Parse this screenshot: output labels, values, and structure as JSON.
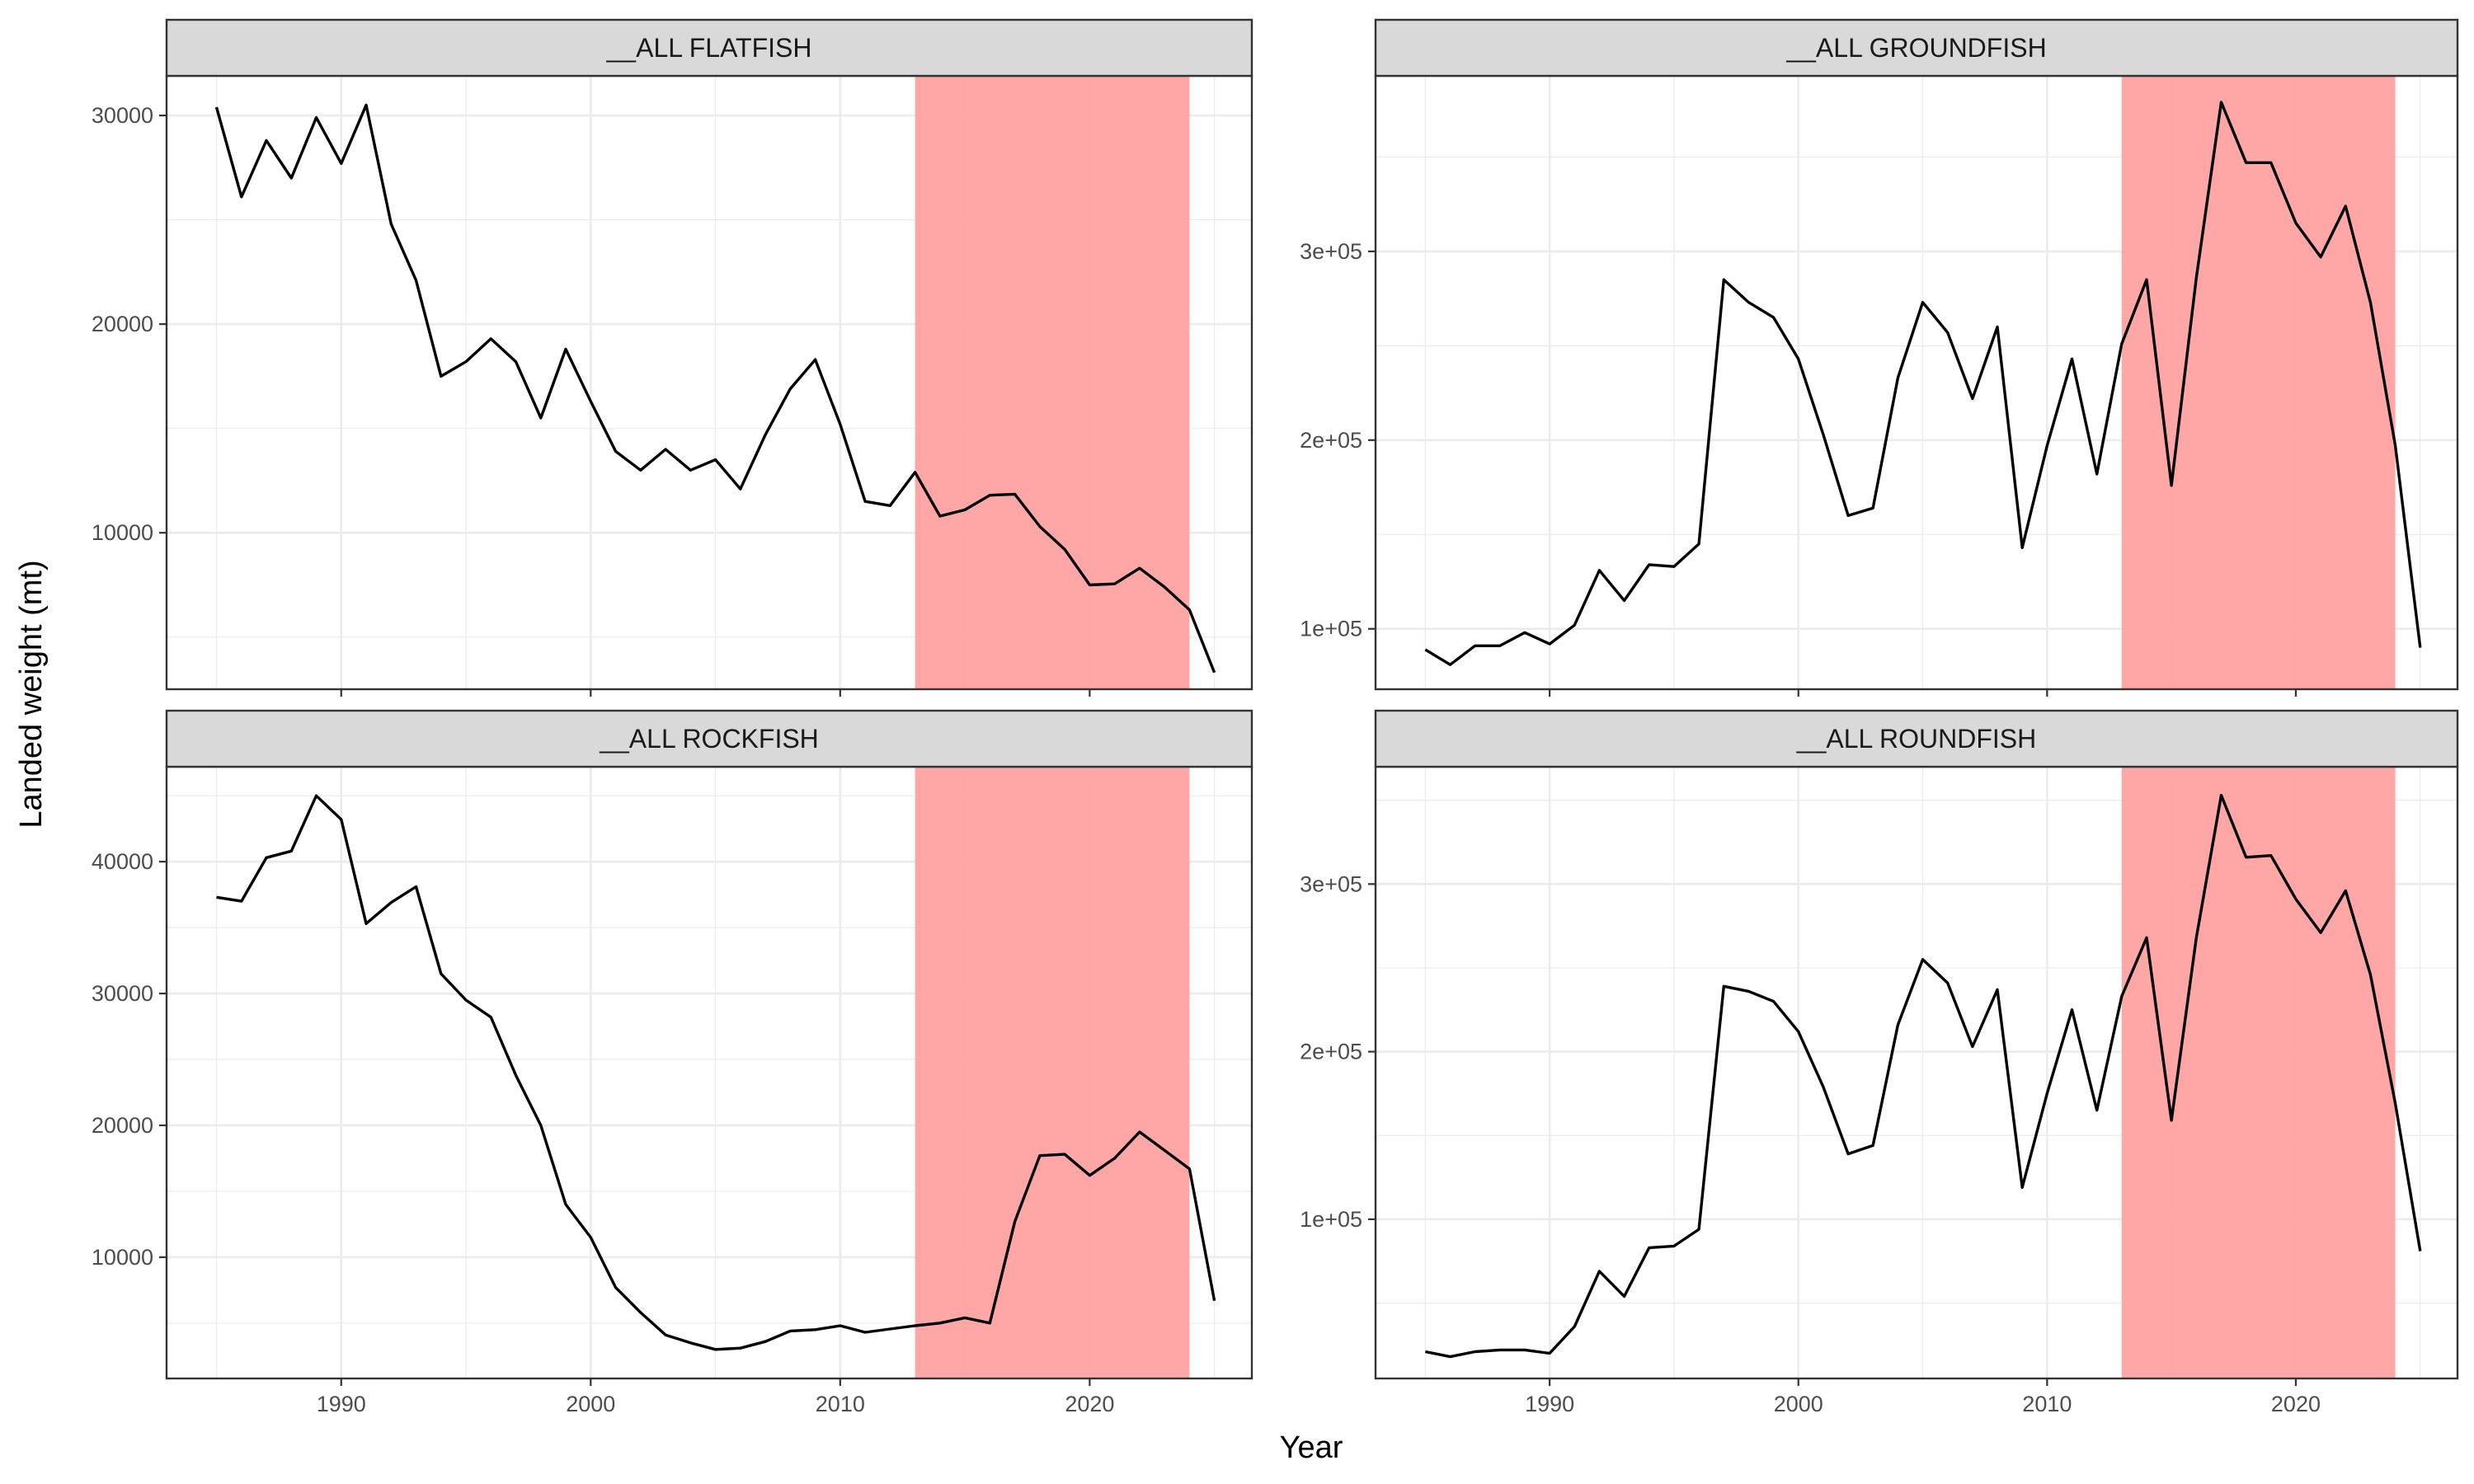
{
  "figure": {
    "xlabel": "Year",
    "ylabel": "Landed weight (mt)"
  },
  "colors": {
    "line": "#000000",
    "highlight": "#ff9fa0",
    "strip_fill": "#d9d9d9",
    "grid": "#ebebeb",
    "panel_border": "#333333"
  },
  "chart_data": [
    {
      "type": "line",
      "title": "__ALL FLATFISH",
      "highlight_range": [
        2013,
        2024
      ],
      "xlim": [
        1983,
        2026.5
      ],
      "ylim": [
        2500,
        31900
      ],
      "x_ticks": [
        1990,
        2000,
        2010,
        2020
      ],
      "y_ticks": [
        10000,
        20000,
        30000
      ],
      "y_tick_labels": [
        "10000",
        "20000",
        "30000"
      ],
      "show_x_tick_labels": false,
      "x": [
        1985,
        1986,
        1987,
        1988,
        1989,
        1990,
        1991,
        1992,
        1993,
        1994,
        1995,
        1996,
        1997,
        1998,
        1999,
        2000,
        2001,
        2002,
        2003,
        2004,
        2005,
        2006,
        2007,
        2008,
        2009,
        2010,
        2011,
        2012,
        2013,
        2014,
        2015,
        2016,
        2017,
        2018,
        2019,
        2020,
        2021,
        2022,
        2023,
        2024,
        2025
      ],
      "y": [
        30400,
        26100,
        28800,
        27000,
        29900,
        27700,
        30500,
        24800,
        22100,
        17500,
        18200,
        19300,
        18200,
        15500,
        18800,
        16300,
        13900,
        13000,
        14000,
        13000,
        13500,
        12100,
        14700,
        16900,
        18300,
        15200,
        11500,
        11300,
        12900,
        10800,
        11100,
        11800,
        11850,
        10300,
        9200,
        7500,
        7550,
        8300,
        7400,
        6300,
        3300
      ]
    },
    {
      "type": "line",
      "title": "__ALL GROUNDFISH",
      "highlight_range": [
        2013,
        2024
      ],
      "xlim": [
        1983,
        2026.5
      ],
      "ylim": [
        68000,
        393000
      ],
      "x_ticks": [
        1990,
        2000,
        2010,
        2020
      ],
      "y_ticks": [
        100000,
        200000,
        300000
      ],
      "y_tick_labels": [
        "1e+05",
        "2e+05",
        "3e+05"
      ],
      "show_x_tick_labels": false,
      "x": [
        1985,
        1986,
        1987,
        1988,
        1989,
        1990,
        1991,
        1992,
        1993,
        1994,
        1995,
        1996,
        1997,
        1998,
        1999,
        2000,
        2001,
        2002,
        2003,
        2004,
        2005,
        2006,
        2007,
        2008,
        2009,
        2010,
        2011,
        2012,
        2013,
        2014,
        2015,
        2016,
        2017,
        2018,
        2019,
        2020,
        2021,
        2022,
        2023,
        2024,
        2025
      ],
      "y": [
        89000,
        81000,
        91000,
        91000,
        98000,
        92000,
        102000,
        131000,
        115000,
        134000,
        133000,
        145000,
        285000,
        273000,
        265000,
        243000,
        203000,
        160000,
        164000,
        233000,
        273000,
        257000,
        222000,
        260000,
        143000,
        197000,
        243000,
        182000,
        251000,
        285000,
        176000,
        286000,
        379000,
        347000,
        347000,
        315000,
        297000,
        324000,
        273000,
        197000,
        90000
      ]
    },
    {
      "type": "line",
      "title": "__ALL ROCKFISH",
      "highlight_range": [
        2013,
        2024
      ],
      "xlim": [
        1983,
        2026.5
      ],
      "ylim": [
        800,
        47200
      ],
      "x_ticks": [
        1990,
        2000,
        2010,
        2020
      ],
      "y_ticks": [
        10000,
        20000,
        30000,
        40000
      ],
      "y_tick_labels": [
        "10000",
        "20000",
        "30000",
        "40000"
      ],
      "show_x_tick_labels": true,
      "x_tick_labels": [
        "1990",
        "2000",
        "2010",
        "2020"
      ],
      "x": [
        1985,
        1986,
        1987,
        1988,
        1989,
        1990,
        1991,
        1992,
        1993,
        1994,
        1995,
        1996,
        1997,
        1998,
        1999,
        2000,
        2001,
        2002,
        2003,
        2004,
        2005,
        2006,
        2007,
        2008,
        2009,
        2010,
        2011,
        2012,
        2013,
        2014,
        2015,
        2016,
        2017,
        2018,
        2019,
        2020,
        2021,
        2022,
        2023,
        2024,
        2025
      ],
      "y": [
        37300,
        37000,
        40300,
        40800,
        45000,
        43200,
        35300,
        36900,
        38100,
        31500,
        29500,
        28200,
        23800,
        20000,
        14000,
        11500,
        7700,
        5800,
        4100,
        3500,
        3000,
        3100,
        3600,
        4400,
        4500,
        4800,
        4300,
        4550,
        4800,
        5000,
        5400,
        5000,
        12700,
        17700,
        17800,
        16200,
        17500,
        19500,
        18100,
        16700,
        6700
      ]
    },
    {
      "type": "line",
      "title": "__ALL ROUNDFISH",
      "highlight_range": [
        2013,
        2024
      ],
      "xlim": [
        1983,
        2026.5
      ],
      "ylim": [
        5000,
        370000
      ],
      "x_ticks": [
        1990,
        2000,
        2010,
        2020
      ],
      "y_ticks": [
        100000,
        200000,
        300000
      ],
      "y_tick_labels": [
        "1e+05",
        "2e+05",
        "3e+05"
      ],
      "show_x_tick_labels": true,
      "x_tick_labels": [
        "1990",
        "2000",
        "2010",
        "2020"
      ],
      "x": [
        1985,
        1986,
        1987,
        1988,
        1989,
        1990,
        1991,
        1992,
        1993,
        1994,
        1995,
        1996,
        1997,
        1998,
        1999,
        2000,
        2001,
        2002,
        2003,
        2004,
        2005,
        2006,
        2007,
        2008,
        2009,
        2010,
        2011,
        2012,
        2013,
        2014,
        2015,
        2016,
        2017,
        2018,
        2019,
        2020,
        2021,
        2022,
        2023,
        2024,
        2025
      ],
      "y": [
        21000,
        18000,
        21000,
        22000,
        22000,
        20000,
        36000,
        69000,
        54000,
        83000,
        84000,
        94000,
        239000,
        236000,
        230000,
        212000,
        179000,
        139000,
        144000,
        216000,
        255000,
        241000,
        203000,
        237000,
        119000,
        175000,
        225000,
        165000,
        233000,
        268000,
        159000,
        268000,
        353000,
        316000,
        317000,
        291000,
        271000,
        296000,
        246000,
        169000,
        81000
      ]
    }
  ]
}
